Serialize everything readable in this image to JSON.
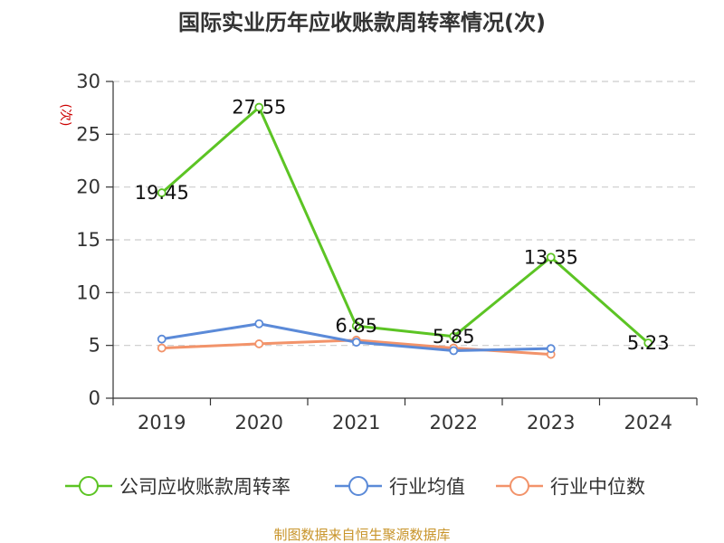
{
  "colors": {
    "company": "#5cc424",
    "industry_avg": "#5b8ad8",
    "industry_median": "#f2936a",
    "grid": "#cccccc",
    "axis": "#333333"
  },
  "source_text": "制图数据来自恒生聚源数据库",
  "chart_data": {
    "type": "line",
    "title": "国际实业历年应收账款周转率情况(次)",
    "ylabel": "(次)",
    "xlabel": "",
    "ylim": [
      0,
      30
    ],
    "yticks": [
      0,
      5,
      10,
      15,
      20,
      25,
      30
    ],
    "categories": [
      "2019",
      "2020",
      "2021",
      "2022",
      "2023",
      "2024"
    ],
    "legend_position": "bottom",
    "grid": true,
    "series": [
      {
        "name": "公司应收账款周转率",
        "color_key": "company",
        "values": [
          19.45,
          27.55,
          6.85,
          5.85,
          13.35,
          5.23
        ],
        "labels": [
          "19.45",
          "27.55",
          "6.85",
          "5.85",
          "13.35",
          "5.23"
        ]
      },
      {
        "name": "行业均值",
        "color_key": "industry_avg",
        "values": [
          5.6,
          7.05,
          5.3,
          4.5,
          4.7,
          null
        ]
      },
      {
        "name": "行业中位数",
        "color_key": "industry_median",
        "values": [
          4.75,
          5.15,
          5.5,
          4.75,
          4.15,
          null
        ]
      }
    ]
  }
}
